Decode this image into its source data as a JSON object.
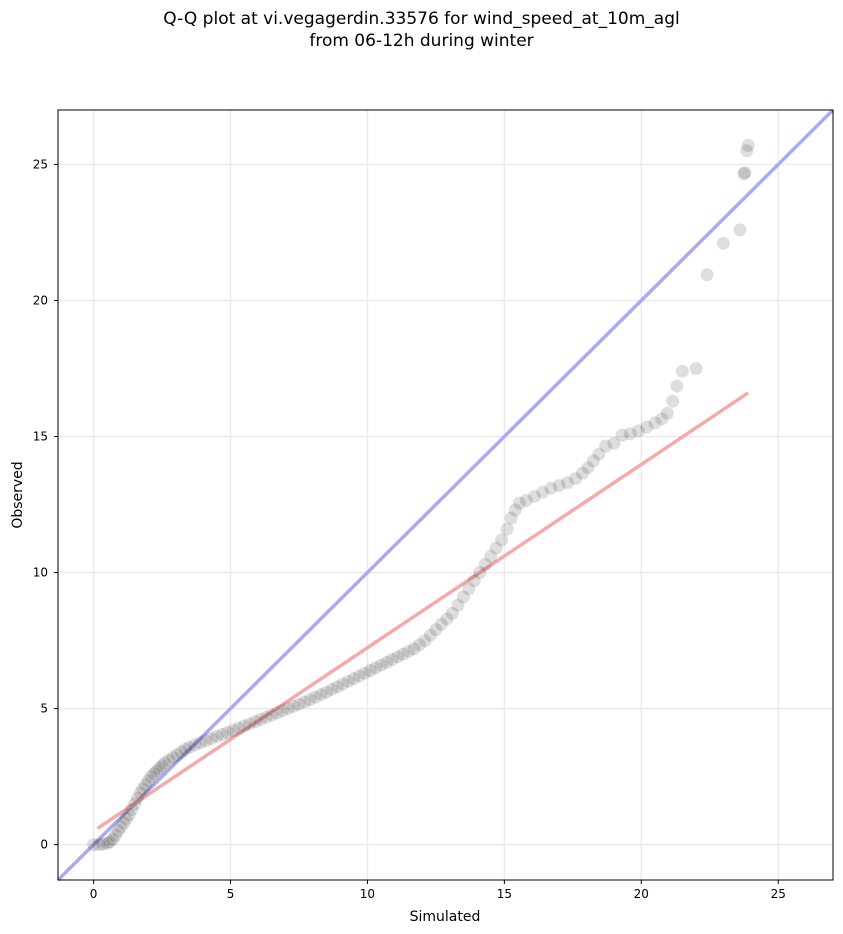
{
  "chart_data": {
    "type": "scatter",
    "title_line1": "Q-Q plot at vi.vegagerdin.33576 for wind_speed_at_10m_agl",
    "title_line2": "from 06-12h during winter",
    "xlabel": "Simulated",
    "ylabel": "Observed",
    "xlim": [
      -1.3,
      27
    ],
    "ylim": [
      -1.3,
      27
    ],
    "xticks": [
      0,
      5,
      10,
      15,
      20,
      25
    ],
    "yticks": [
      0,
      5,
      10,
      15,
      20,
      25
    ],
    "grid": true,
    "identity_line": {
      "color": "#aaaaf2",
      "from": [
        -1.3,
        -1.3
      ],
      "to": [
        27,
        27
      ]
    },
    "fit_line": {
      "color": "#f5a9a9",
      "from": [
        0.15,
        0.6
      ],
      "to": [
        23.9,
        16.6
      ]
    },
    "points_color": "#000000",
    "points": [
      [
        0.0,
        0.0
      ],
      [
        0.2,
        0.0
      ],
      [
        0.35,
        0.02
      ],
      [
        0.5,
        0.05
      ],
      [
        0.6,
        0.1
      ],
      [
        0.7,
        0.2
      ],
      [
        0.8,
        0.35
      ],
      [
        0.9,
        0.5
      ],
      [
        1.0,
        0.65
      ],
      [
        1.1,
        0.8
      ],
      [
        1.2,
        0.95
      ],
      [
        1.3,
        1.1
      ],
      [
        1.4,
        1.3
      ],
      [
        1.5,
        1.5
      ],
      [
        1.6,
        1.7
      ],
      [
        1.7,
        1.9
      ],
      [
        1.8,
        2.05
      ],
      [
        1.9,
        2.2
      ],
      [
        2.0,
        2.35
      ],
      [
        2.1,
        2.5
      ],
      [
        2.2,
        2.6
      ],
      [
        2.3,
        2.7
      ],
      [
        2.4,
        2.8
      ],
      [
        2.5,
        2.9
      ],
      [
        2.6,
        3.0
      ],
      [
        2.75,
        3.1
      ],
      [
        2.9,
        3.2
      ],
      [
        3.05,
        3.3
      ],
      [
        3.2,
        3.4
      ],
      [
        3.35,
        3.5
      ],
      [
        3.5,
        3.58
      ],
      [
        3.7,
        3.66
      ],
      [
        3.9,
        3.74
      ],
      [
        4.1,
        3.82
      ],
      [
        4.3,
        3.9
      ],
      [
        4.5,
        3.98
      ],
      [
        4.7,
        4.05
      ],
      [
        4.9,
        4.12
      ],
      [
        5.1,
        4.2
      ],
      [
        5.3,
        4.28
      ],
      [
        5.5,
        4.36
      ],
      [
        5.7,
        4.44
      ],
      [
        5.9,
        4.52
      ],
      [
        6.1,
        4.6
      ],
      [
        6.3,
        4.68
      ],
      [
        6.5,
        4.76
      ],
      [
        6.7,
        4.84
      ],
      [
        6.9,
        4.92
      ],
      [
        7.1,
        5.0
      ],
      [
        7.3,
        5.08
      ],
      [
        7.5,
        5.16
      ],
      [
        7.7,
        5.24
      ],
      [
        7.9,
        5.33
      ],
      [
        8.1,
        5.42
      ],
      [
        8.3,
        5.51
      ],
      [
        8.5,
        5.6
      ],
      [
        8.7,
        5.7
      ],
      [
        8.9,
        5.8
      ],
      [
        9.1,
        5.9
      ],
      [
        9.3,
        6.0
      ],
      [
        9.5,
        6.1
      ],
      [
        9.7,
        6.2
      ],
      [
        9.9,
        6.3
      ],
      [
        10.1,
        6.4
      ],
      [
        10.3,
        6.5
      ],
      [
        10.5,
        6.6
      ],
      [
        10.7,
        6.7
      ],
      [
        10.9,
        6.8
      ],
      [
        11.1,
        6.9
      ],
      [
        11.3,
        7.0
      ],
      [
        11.5,
        7.1
      ],
      [
        11.7,
        7.2
      ],
      [
        11.9,
        7.35
      ],
      [
        12.1,
        7.5
      ],
      [
        12.3,
        7.7
      ],
      [
        12.5,
        7.9
      ],
      [
        12.7,
        8.1
      ],
      [
        12.9,
        8.3
      ],
      [
        13.1,
        8.5
      ],
      [
        13.3,
        8.8
      ],
      [
        13.5,
        9.1
      ],
      [
        13.7,
        9.4
      ],
      [
        13.9,
        9.7
      ],
      [
        14.1,
        10.0
      ],
      [
        14.3,
        10.3
      ],
      [
        14.5,
        10.6
      ],
      [
        14.7,
        10.9
      ],
      [
        14.9,
        11.2
      ],
      [
        15.1,
        11.6
      ],
      [
        15.25,
        12.0
      ],
      [
        15.4,
        12.3
      ],
      [
        15.55,
        12.55
      ],
      [
        15.8,
        12.65
      ],
      [
        16.1,
        12.8
      ],
      [
        16.4,
        12.95
      ],
      [
        16.7,
        13.1
      ],
      [
        17.0,
        13.2
      ],
      [
        17.3,
        13.3
      ],
      [
        17.6,
        13.45
      ],
      [
        17.85,
        13.65
      ],
      [
        18.05,
        13.85
      ],
      [
        18.25,
        14.1
      ],
      [
        18.45,
        14.35
      ],
      [
        18.7,
        14.65
      ],
      [
        19.0,
        14.75
      ],
      [
        19.3,
        15.05
      ],
      [
        19.6,
        15.1
      ],
      [
        19.9,
        15.2
      ],
      [
        20.2,
        15.35
      ],
      [
        20.5,
        15.5
      ],
      [
        20.75,
        15.65
      ],
      [
        20.95,
        15.85
      ],
      [
        21.15,
        16.3
      ],
      [
        21.3,
        16.85
      ],
      [
        21.5,
        17.4
      ],
      [
        22.0,
        17.5
      ],
      [
        22.4,
        20.95
      ],
      [
        23.0,
        22.1
      ],
      [
        23.6,
        22.6
      ],
      [
        23.75,
        24.65
      ],
      [
        23.78,
        24.7
      ],
      [
        23.85,
        25.5
      ],
      [
        23.9,
        25.7
      ]
    ]
  }
}
